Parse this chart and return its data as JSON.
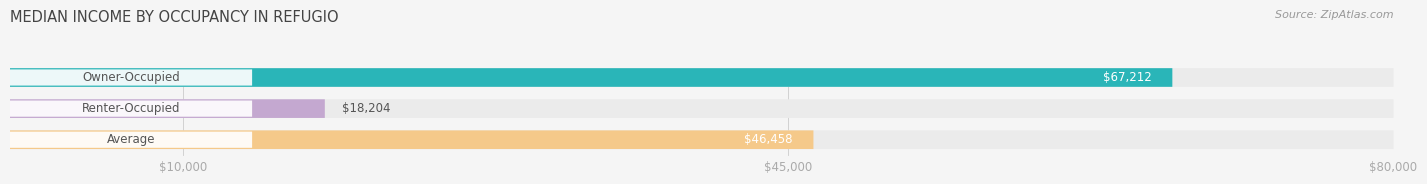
{
  "title": "MEDIAN INCOME BY OCCUPANCY IN REFUGIO",
  "source": "Source: ZipAtlas.com",
  "categories": [
    "Owner-Occupied",
    "Renter-Occupied",
    "Average"
  ],
  "values": [
    67212,
    18204,
    46458
  ],
  "bar_colors": [
    "#2ab5b8",
    "#c4a8d0",
    "#f5c98a"
  ],
  "bar_bg_colors": [
    "#ebebeb",
    "#ebebeb",
    "#ebebeb"
  ],
  "value_labels": [
    "$67,212",
    "$18,204",
    "$46,458"
  ],
  "xlim": [
    0,
    80000
  ],
  "xticks": [
    10000,
    45000,
    80000
  ],
  "xtick_labels": [
    "$10,000",
    "$45,000",
    "$80,000"
  ],
  "title_fontsize": 10.5,
  "source_fontsize": 8,
  "label_fontsize": 8.5,
  "value_label_fontsize": 8.5,
  "bar_height": 0.6,
  "background_color": "#f5f5f5",
  "title_color": "#444444",
  "source_color": "#999999",
  "tick_color": "#aaaaaa",
  "value_label_color_inside": "#ffffff",
  "value_label_color_outside": "#555555",
  "category_label_color": "#555555",
  "grid_color": "#cccccc"
}
